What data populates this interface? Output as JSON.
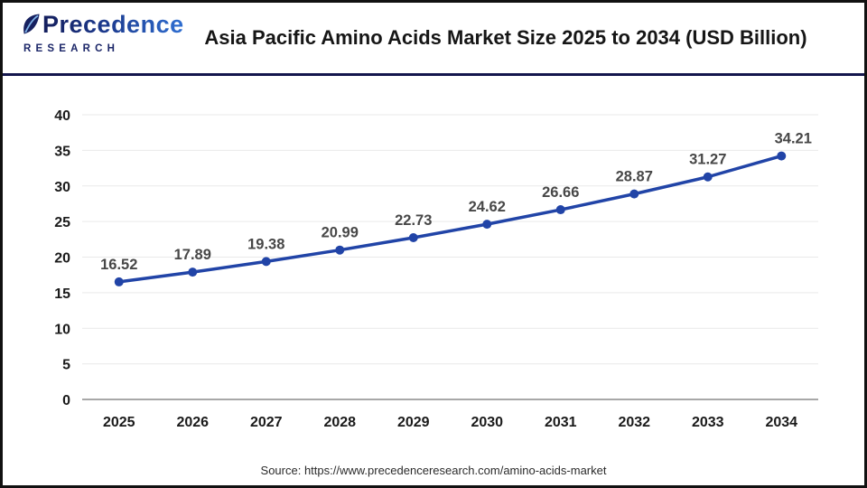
{
  "header": {
    "logo": {
      "line1": "Precedence",
      "line2": "RESEARCH"
    },
    "title": "Asia Pacific Amino Acids Market Size 2025 to 2034 (USD Billion)"
  },
  "chart_data": {
    "type": "line",
    "title": "Asia Pacific Amino Acids Market Size 2025 to 2034 (USD Billion)",
    "unit": "USD Billion",
    "categories": [
      "2025",
      "2026",
      "2027",
      "2028",
      "2029",
      "2030",
      "2031",
      "2032",
      "2033",
      "2034"
    ],
    "values": [
      16.52,
      17.89,
      19.38,
      20.99,
      22.73,
      24.62,
      26.66,
      28.87,
      31.27,
      34.21
    ],
    "xlabel": "",
    "ylabel": "",
    "ylim": [
      0,
      40
    ],
    "ytick_step": 5,
    "grid": true,
    "legend": "none",
    "line_color": "#2144a7",
    "marker_color": "#2144a7",
    "data_label_color": "#474747",
    "axis_label_color": "#1a1a1a",
    "grid_color": "#e9e9e9",
    "axis_line_color": "#a8a8a8"
  },
  "footer": {
    "source": "Source: https://www.precedenceresearch.com/amino-acids-market"
  }
}
